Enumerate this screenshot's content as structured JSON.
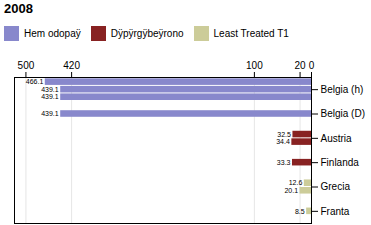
{
  "chart_data": {
    "type": "bar",
    "title": "2008",
    "orientation": "horizontal",
    "categories": [
      "Franta",
      "Grecia",
      "Finlanda",
      "Austria",
      "Belgia (D)",
      "Belgia (h)"
    ],
    "series": [
      {
        "name": "Hem odopaÿ",
        "color": "#8888cc",
        "values": [
          null,
          null,
          null,
          null,
          439.1,
          [
            466.1,
            439.1,
            439.1
          ]
        ]
      },
      {
        "name": "Dÿpÿrgÿbeÿrono",
        "color": "#882222",
        "values": [
          null,
          null,
          33.3,
          [
            32.5,
            34.4
          ],
          null,
          null
        ]
      },
      {
        "name": "Least Treated T1",
        "color": "#cccc99",
        "values": [
          8.5,
          [
            12.6,
            20.1
          ],
          null,
          null,
          null,
          null
        ]
      }
    ],
    "xlim": [
      0,
      520
    ],
    "xticks": [
      0,
      20,
      100,
      420,
      500
    ],
    "grid": true,
    "legend": "top",
    "data_labels": true
  }
}
